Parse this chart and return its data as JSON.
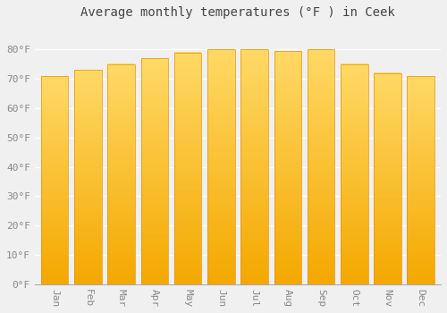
{
  "title": "Average monthly temperatures (°F ) in Ceek",
  "months": [
    "Jan",
    "Feb",
    "Mar",
    "Apr",
    "May",
    "Jun",
    "Jul",
    "Aug",
    "Sep",
    "Oct",
    "Nov",
    "Dec"
  ],
  "values": [
    71,
    73,
    75,
    77,
    79,
    80,
    80,
    79.5,
    80,
    75,
    72,
    71
  ],
  "ylim": [
    0,
    88
  ],
  "yticks": [
    0,
    10,
    20,
    30,
    40,
    50,
    60,
    70,
    80
  ],
  "ytick_labels": [
    "0°F",
    "10°F",
    "20°F",
    "30°F",
    "40°F",
    "50°F",
    "60°F",
    "70°F",
    "80°F"
  ],
  "bar_color_top": "#FFD966",
  "bar_color_bottom": "#F4A800",
  "bar_color_edge": "#E89000",
  "background_color": "#f0f0f0",
  "plot_bg_color": "#f0f0f0",
  "grid_color": "#ffffff",
  "title_fontsize": 10,
  "tick_fontsize": 8,
  "bar_width": 0.82
}
